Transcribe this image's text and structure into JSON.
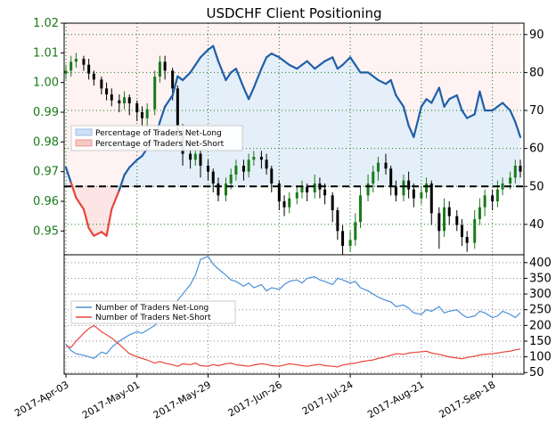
{
  "chart_data": [
    {
      "type": "candlestick-with-area-overlay",
      "title": "USDCHF Client Positioning",
      "x_labels": [
        "2017-Apr-03",
        "2017-May-01",
        "2017-May-29",
        "2017-Jun-26",
        "2017-Jul-24",
        "2017-Aug-21",
        "2017-Sep-18"
      ],
      "left_axis": {
        "ticks": [
          "1.02",
          "1.01",
          "1.00",
          "0.99",
          "0.98",
          "0.97",
          "0.96",
          "0.95"
        ],
        "ylim": [
          0.942,
          1.02
        ]
      },
      "right_axis": {
        "ticks": [
          "90",
          "80",
          "70",
          "60",
          "50",
          "40"
        ],
        "ylim": [
          32,
          93
        ]
      },
      "legend": [
        "Percentage of Traders Net-Long",
        "Percentage of Traders Net-Short"
      ],
      "threshold": 50,
      "pct_long": {
        "name": "Percentage of Traders Net-Long",
        "x": [
          "2017-Apr-03",
          "2017-Apr-05",
          "2017-Apr-07",
          "2017-Apr-10",
          "2017-Apr-12",
          "2017-Apr-14",
          "2017-Apr-17",
          "2017-Apr-19",
          "2017-Apr-21",
          "2017-Apr-24",
          "2017-Apr-26",
          "2017-Apr-28",
          "2017-May-01",
          "2017-May-03",
          "2017-May-05",
          "2017-May-08",
          "2017-May-10",
          "2017-May-12",
          "2017-May-15",
          "2017-May-17",
          "2017-May-19",
          "2017-May-22",
          "2017-May-24",
          "2017-May-26",
          "2017-May-29",
          "2017-May-31",
          "2017-Jun-02",
          "2017-Jun-05",
          "2017-Jun-07",
          "2017-Jun-09",
          "2017-Jun-12",
          "2017-Jun-14",
          "2017-Jun-16",
          "2017-Jun-19",
          "2017-Jun-21",
          "2017-Jun-23",
          "2017-Jun-26",
          "2017-Jun-28",
          "2017-Jun-30",
          "2017-Jul-03",
          "2017-Jul-05",
          "2017-Jul-07",
          "2017-Jul-10",
          "2017-Jul-12",
          "2017-Jul-14",
          "2017-Jul-17",
          "2017-Jul-19",
          "2017-Jul-21",
          "2017-Jul-24",
          "2017-Jul-26",
          "2017-Jul-28",
          "2017-Jul-31",
          "2017-Aug-02",
          "2017-Aug-04",
          "2017-Aug-07",
          "2017-Aug-09",
          "2017-Aug-11",
          "2017-Aug-14",
          "2017-Aug-16",
          "2017-Aug-18",
          "2017-Aug-21",
          "2017-Aug-23",
          "2017-Aug-25",
          "2017-Aug-28",
          "2017-Aug-30",
          "2017-Sep-01",
          "2017-Sep-04",
          "2017-Sep-06",
          "2017-Sep-08",
          "2017-Sep-11",
          "2017-Sep-13",
          "2017-Sep-15",
          "2017-Sep-18",
          "2017-Sep-20",
          "2017-Sep-22",
          "2017-Sep-25",
          "2017-Sep-27",
          "2017-Sep-29"
        ],
        "values": [
          55,
          51,
          47,
          44,
          39,
          37,
          38,
          37,
          44,
          49,
          53,
          55,
          57,
          58,
          60,
          62,
          67,
          71,
          74,
          79,
          78,
          80,
          82,
          84,
          86,
          87,
          83,
          78,
          80,
          81,
          76,
          73,
          76,
          81,
          84,
          85,
          84,
          83,
          82,
          81,
          82,
          83,
          81,
          82,
          83,
          84,
          81,
          82,
          84,
          82,
          80,
          80,
          79,
          78,
          77,
          78,
          74,
          71,
          66,
          63,
          71,
          73,
          72,
          76,
          71,
          73,
          74,
          70,
          68,
          69,
          75,
          70,
          70,
          71,
          72,
          70,
          67,
          63
        ]
      },
      "candles": [
        {
          "x": "2017-Apr-03",
          "o": 1.003,
          "c": 1.004,
          "h": 1.006,
          "l": 1.001
        },
        {
          "x": "2017-Apr-05",
          "o": 1.004,
          "c": 1.007,
          "h": 1.009,
          "l": 1.002
        },
        {
          "x": "2017-Apr-07",
          "o": 1.007,
          "c": 1.008,
          "h": 1.01,
          "l": 1.005
        },
        {
          "x": "2017-Apr-10",
          "o": 1.008,
          "c": 1.006,
          "h": 1.009,
          "l": 1.004
        },
        {
          "x": "2017-Apr-12",
          "o": 1.006,
          "c": 1.003,
          "h": 1.008,
          "l": 1.001
        },
        {
          "x": "2017-Apr-14",
          "o": 1.003,
          "c": 1.001,
          "h": 1.004,
          "l": 0.999
        },
        {
          "x": "2017-Apr-17",
          "o": 1.001,
          "c": 0.998,
          "h": 1.002,
          "l": 0.996
        },
        {
          "x": "2017-Apr-19",
          "o": 0.998,
          "c": 0.996,
          "h": 1.0,
          "l": 0.994
        },
        {
          "x": "2017-Apr-21",
          "o": 0.996,
          "c": 0.994,
          "h": 0.998,
          "l": 0.992
        },
        {
          "x": "2017-Apr-24",
          "o": 0.994,
          "c": 0.993,
          "h": 0.996,
          "l": 0.99
        },
        {
          "x": "2017-Apr-26",
          "o": 0.993,
          "c": 0.995,
          "h": 0.997,
          "l": 0.991
        },
        {
          "x": "2017-Apr-28",
          "o": 0.995,
          "c": 0.993,
          "h": 0.996,
          "l": 0.989
        },
        {
          "x": "2017-May-01",
          "o": 0.993,
          "c": 0.99,
          "h": 0.994,
          "l": 0.987
        },
        {
          "x": "2017-May-03",
          "o": 0.99,
          "c": 0.988,
          "h": 0.992,
          "l": 0.985
        },
        {
          "x": "2017-May-05",
          "o": 0.988,
          "c": 0.991,
          "h": 0.993,
          "l": 0.984
        },
        {
          "x": "2017-May-08",
          "o": 0.991,
          "c": 1.002,
          "h": 1.004,
          "l": 0.989
        },
        {
          "x": "2017-May-10",
          "o": 1.002,
          "c": 1.007,
          "h": 1.009,
          "l": 1.0
        },
        {
          "x": "2017-May-12",
          "o": 1.007,
          "c": 1.004,
          "h": 1.009,
          "l": 1.001
        },
        {
          "x": "2017-May-15",
          "o": 1.004,
          "c": 0.998,
          "h": 1.005,
          "l": 0.994
        },
        {
          "x": "2017-May-17",
          "o": 0.998,
          "c": 0.984,
          "h": 0.999,
          "l": 0.98
        },
        {
          "x": "2017-May-19",
          "o": 0.984,
          "c": 0.976,
          "h": 0.986,
          "l": 0.972
        },
        {
          "x": "2017-May-22",
          "o": 0.976,
          "c": 0.974,
          "h": 0.979,
          "l": 0.971
        },
        {
          "x": "2017-May-24",
          "o": 0.974,
          "c": 0.976,
          "h": 0.978,
          "l": 0.972
        },
        {
          "x": "2017-May-26",
          "o": 0.976,
          "c": 0.972,
          "h": 0.977,
          "l": 0.968
        },
        {
          "x": "2017-May-29",
          "o": 0.972,
          "c": 0.97,
          "h": 0.974,
          "l": 0.967
        },
        {
          "x": "2017-May-31",
          "o": 0.97,
          "c": 0.966,
          "h": 0.971,
          "l": 0.963
        },
        {
          "x": "2017-Jun-02",
          "o": 0.966,
          "c": 0.962,
          "h": 0.968,
          "l": 0.96
        },
        {
          "x": "2017-Jun-05",
          "o": 0.962,
          "c": 0.966,
          "h": 0.968,
          "l": 0.96
        },
        {
          "x": "2017-Jun-07",
          "o": 0.966,
          "c": 0.969,
          "h": 0.971,
          "l": 0.964
        },
        {
          "x": "2017-Jun-09",
          "o": 0.969,
          "c": 0.972,
          "h": 0.974,
          "l": 0.967
        },
        {
          "x": "2017-Jun-12",
          "o": 0.972,
          "c": 0.97,
          "h": 0.974,
          "l": 0.967
        },
        {
          "x": "2017-Jun-14",
          "o": 0.97,
          "c": 0.974,
          "h": 0.976,
          "l": 0.968
        },
        {
          "x": "2017-Jun-16",
          "o": 0.974,
          "c": 0.975,
          "h": 0.977,
          "l": 0.972
        },
        {
          "x": "2017-Jun-19",
          "o": 0.975,
          "c": 0.974,
          "h": 0.977,
          "l": 0.971
        },
        {
          "x": "2017-Jun-21",
          "o": 0.974,
          "c": 0.971,
          "h": 0.976,
          "l": 0.969
        },
        {
          "x": "2017-Jun-23",
          "o": 0.971,
          "c": 0.966,
          "h": 0.972,
          "l": 0.963
        },
        {
          "x": "2017-Jun-26",
          "o": 0.966,
          "c": 0.96,
          "h": 0.967,
          "l": 0.957
        },
        {
          "x": "2017-Jun-28",
          "o": 0.96,
          "c": 0.958,
          "h": 0.962,
          "l": 0.955
        },
        {
          "x": "2017-Jun-30",
          "o": 0.958,
          "c": 0.961,
          "h": 0.963,
          "l": 0.956
        },
        {
          "x": "2017-Jul-03",
          "o": 0.961,
          "c": 0.963,
          "h": 0.965,
          "l": 0.959
        },
        {
          "x": "2017-Jul-05",
          "o": 0.963,
          "c": 0.965,
          "h": 0.967,
          "l": 0.961
        },
        {
          "x": "2017-Jul-07",
          "o": 0.965,
          "c": 0.963,
          "h": 0.966,
          "l": 0.96
        },
        {
          "x": "2017-Jul-10",
          "o": 0.963,
          "c": 0.966,
          "h": 0.969,
          "l": 0.961
        },
        {
          "x": "2017-Jul-12",
          "o": 0.966,
          "c": 0.964,
          "h": 0.968,
          "l": 0.961
        },
        {
          "x": "2017-Jul-14",
          "o": 0.964,
          "c": 0.962,
          "h": 0.966,
          "l": 0.959
        },
        {
          "x": "2017-Jul-17",
          "o": 0.962,
          "c": 0.957,
          "h": 0.963,
          "l": 0.953
        },
        {
          "x": "2017-Jul-19",
          "o": 0.957,
          "c": 0.95,
          "h": 0.958,
          "l": 0.947
        },
        {
          "x": "2017-Jul-21",
          "o": 0.95,
          "c": 0.945,
          "h": 0.952,
          "l": 0.942
        },
        {
          "x": "2017-Jul-24",
          "o": 0.945,
          "c": 0.947,
          "h": 0.95,
          "l": 0.943
        },
        {
          "x": "2017-Jul-26",
          "o": 0.947,
          "c": 0.953,
          "h": 0.956,
          "l": 0.945
        },
        {
          "x": "2017-Jul-28",
          "o": 0.953,
          "c": 0.962,
          "h": 0.965,
          "l": 0.951
        },
        {
          "x": "2017-Jul-31",
          "o": 0.962,
          "c": 0.966,
          "h": 0.969,
          "l": 0.96
        },
        {
          "x": "2017-Aug-02",
          "o": 0.966,
          "c": 0.97,
          "h": 0.972,
          "l": 0.963
        },
        {
          "x": "2017-Aug-04",
          "o": 0.97,
          "c": 0.973,
          "h": 0.975,
          "l": 0.967
        },
        {
          "x": "2017-Aug-07",
          "o": 0.973,
          "c": 0.971,
          "h": 0.976,
          "l": 0.969
        },
        {
          "x": "2017-Aug-09",
          "o": 0.971,
          "c": 0.965,
          "h": 0.972,
          "l": 0.962
        },
        {
          "x": "2017-Aug-11",
          "o": 0.965,
          "c": 0.962,
          "h": 0.967,
          "l": 0.96
        },
        {
          "x": "2017-Aug-14",
          "o": 0.962,
          "c": 0.967,
          "h": 0.969,
          "l": 0.96
        },
        {
          "x": "2017-Aug-16",
          "o": 0.967,
          "c": 0.964,
          "h": 0.97,
          "l": 0.961
        },
        {
          "x": "2017-Aug-18",
          "o": 0.964,
          "c": 0.961,
          "h": 0.966,
          "l": 0.958
        },
        {
          "x": "2017-Aug-21",
          "o": 0.961,
          "c": 0.963,
          "h": 0.965,
          "l": 0.959
        },
        {
          "x": "2017-Aug-23",
          "o": 0.963,
          "c": 0.966,
          "h": 0.968,
          "l": 0.961
        },
        {
          "x": "2017-Aug-25",
          "o": 0.966,
          "c": 0.956,
          "h": 0.967,
          "l": 0.952
        },
        {
          "x": "2017-Aug-28",
          "o": 0.956,
          "c": 0.95,
          "h": 0.958,
          "l": 0.944
        },
        {
          "x": "2017-Aug-30",
          "o": 0.95,
          "c": 0.958,
          "h": 0.961,
          "l": 0.948
        },
        {
          "x": "2017-Sep-01",
          "o": 0.958,
          "c": 0.955,
          "h": 0.96,
          "l": 0.952
        },
        {
          "x": "2017-Sep-04",
          "o": 0.955,
          "c": 0.952,
          "h": 0.957,
          "l": 0.95
        },
        {
          "x": "2017-Sep-06",
          "o": 0.952,
          "c": 0.948,
          "h": 0.954,
          "l": 0.945
        },
        {
          "x": "2017-Sep-08",
          "o": 0.948,
          "c": 0.946,
          "h": 0.95,
          "l": 0.943
        },
        {
          "x": "2017-Sep-11",
          "o": 0.946,
          "c": 0.954,
          "h": 0.957,
          "l": 0.944
        },
        {
          "x": "2017-Sep-13",
          "o": 0.954,
          "c": 0.958,
          "h": 0.961,
          "l": 0.952
        },
        {
          "x": "2017-Sep-15",
          "o": 0.958,
          "c": 0.962,
          "h": 0.964,
          "l": 0.955
        },
        {
          "x": "2017-Sep-18",
          "o": 0.962,
          "c": 0.96,
          "h": 0.964,
          "l": 0.957
        },
        {
          "x": "2017-Sep-20",
          "o": 0.96,
          "c": 0.964,
          "h": 0.967,
          "l": 0.958
        },
        {
          "x": "2017-Sep-22",
          "o": 0.964,
          "c": 0.966,
          "h": 0.968,
          "l": 0.962
        },
        {
          "x": "2017-Sep-25",
          "o": 0.966,
          "c": 0.968,
          "h": 0.97,
          "l": 0.964
        },
        {
          "x": "2017-Sep-27",
          "o": 0.968,
          "c": 0.972,
          "h": 0.974,
          "l": 0.966
        },
        {
          "x": "2017-Sep-29",
          "o": 0.972,
          "c": 0.97,
          "h": 0.974,
          "l": 0.968
        }
      ],
      "colors": {
        "long": "#1f5fa8",
        "short": "#e8453c",
        "up_candle": "#1a7a1a",
        "down_candle": "#000000",
        "left_ticks": "#1a7a1a"
      },
      "grid": true
    },
    {
      "type": "line",
      "y_axis": {
        "ticks": [
          "400",
          "350",
          "300",
          "250",
          "200",
          "150",
          "100",
          "50"
        ],
        "ylim": [
          45,
          425
        ]
      },
      "legend": [
        "Number of Traders Net-Long",
        "Number of Traders Net-Short"
      ],
      "series": [
        {
          "name": "Number of Traders Net-Long",
          "color": "#4a90d9",
          "values": [
            140,
            120,
            110,
            105,
            100,
            95,
            115,
            110,
            130,
            150,
            160,
            170,
            180,
            175,
            185,
            200,
            220,
            240,
            260,
            280,
            300,
            330,
            360,
            410,
            420,
            395,
            380,
            360,
            345,
            340,
            325,
            335,
            320,
            330,
            310,
            320,
            315,
            330,
            340,
            345,
            335,
            350,
            355,
            345,
            340,
            330,
            350,
            345,
            335,
            340,
            320,
            310,
            300,
            290,
            280,
            275,
            260,
            265,
            255,
            240,
            235,
            250,
            245,
            260,
            240,
            245,
            250,
            235,
            225,
            230,
            245,
            240,
            225,
            230,
            245,
            235,
            225,
            240
          ]
        },
        {
          "name": "Number of Traders Net-Short",
          "color": "#e8453c",
          "values": [
            135,
            130,
            150,
            175,
            190,
            200,
            180,
            170,
            160,
            140,
            125,
            110,
            100,
            95,
            90,
            80,
            85,
            80,
            75,
            70,
            78,
            75,
            80,
            72,
            70,
            75,
            72,
            78,
            80,
            75,
            72,
            70,
            74,
            78,
            76,
            72,
            70,
            74,
            78,
            75,
            72,
            70,
            74,
            76,
            72,
            70,
            68,
            74,
            78,
            80,
            84,
            88,
            90,
            95,
            100,
            105,
            110,
            108,
            112,
            114,
            116,
            118,
            112,
            108,
            104,
            100,
            96,
            94,
            98,
            102,
            106,
            108,
            110,
            112,
            115,
            118,
            122,
            125
          ]
        }
      ],
      "grid": true
    }
  ]
}
